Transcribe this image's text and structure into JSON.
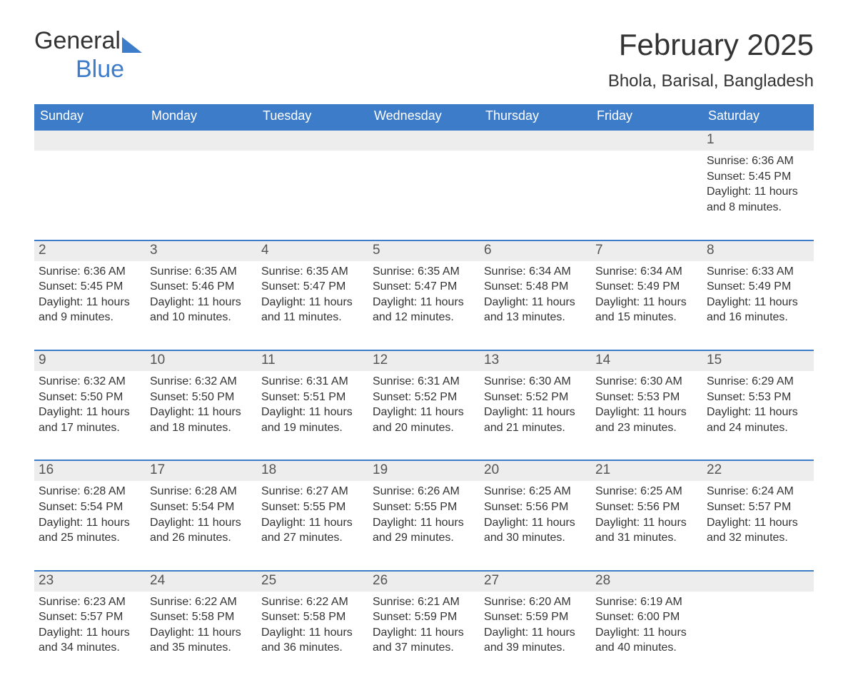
{
  "logo": {
    "word1": "General",
    "word2": "Blue",
    "tri_color": "#3d7cc9"
  },
  "title": "February 2025",
  "location": "Bhola, Barisal, Bangladesh",
  "colors": {
    "header_bg": "#3d7cc9",
    "header_text": "#ffffff",
    "daynum_bg": "#ededed",
    "week_border": "#3d7cc9",
    "body_text": "#333333",
    "background": "#ffffff"
  },
  "typography": {
    "title_fontsize": 42,
    "location_fontsize": 24,
    "weekday_fontsize": 18,
    "daynum_fontsize": 19,
    "detail_fontsize": 16
  },
  "weekdays": [
    "Sunday",
    "Monday",
    "Tuesday",
    "Wednesday",
    "Thursday",
    "Friday",
    "Saturday"
  ],
  "labels": {
    "sunrise": "Sunrise:",
    "sunset": "Sunset:",
    "daylight": "Daylight:"
  },
  "weeks": [
    [
      null,
      null,
      null,
      null,
      null,
      null,
      {
        "day": "1",
        "sunrise": "6:36 AM",
        "sunset": "5:45 PM",
        "daylight": "11 hours and 8 minutes."
      }
    ],
    [
      {
        "day": "2",
        "sunrise": "6:36 AM",
        "sunset": "5:45 PM",
        "daylight": "11 hours and 9 minutes."
      },
      {
        "day": "3",
        "sunrise": "6:35 AM",
        "sunset": "5:46 PM",
        "daylight": "11 hours and 10 minutes."
      },
      {
        "day": "4",
        "sunrise": "6:35 AM",
        "sunset": "5:47 PM",
        "daylight": "11 hours and 11 minutes."
      },
      {
        "day": "5",
        "sunrise": "6:35 AM",
        "sunset": "5:47 PM",
        "daylight": "11 hours and 12 minutes."
      },
      {
        "day": "6",
        "sunrise": "6:34 AM",
        "sunset": "5:48 PM",
        "daylight": "11 hours and 13 minutes."
      },
      {
        "day": "7",
        "sunrise": "6:34 AM",
        "sunset": "5:49 PM",
        "daylight": "11 hours and 15 minutes."
      },
      {
        "day": "8",
        "sunrise": "6:33 AM",
        "sunset": "5:49 PM",
        "daylight": "11 hours and 16 minutes."
      }
    ],
    [
      {
        "day": "9",
        "sunrise": "6:32 AM",
        "sunset": "5:50 PM",
        "daylight": "11 hours and 17 minutes."
      },
      {
        "day": "10",
        "sunrise": "6:32 AM",
        "sunset": "5:50 PM",
        "daylight": "11 hours and 18 minutes."
      },
      {
        "day": "11",
        "sunrise": "6:31 AM",
        "sunset": "5:51 PM",
        "daylight": "11 hours and 19 minutes."
      },
      {
        "day": "12",
        "sunrise": "6:31 AM",
        "sunset": "5:52 PM",
        "daylight": "11 hours and 20 minutes."
      },
      {
        "day": "13",
        "sunrise": "6:30 AM",
        "sunset": "5:52 PM",
        "daylight": "11 hours and 21 minutes."
      },
      {
        "day": "14",
        "sunrise": "6:30 AM",
        "sunset": "5:53 PM",
        "daylight": "11 hours and 23 minutes."
      },
      {
        "day": "15",
        "sunrise": "6:29 AM",
        "sunset": "5:53 PM",
        "daylight": "11 hours and 24 minutes."
      }
    ],
    [
      {
        "day": "16",
        "sunrise": "6:28 AM",
        "sunset": "5:54 PM",
        "daylight": "11 hours and 25 minutes."
      },
      {
        "day": "17",
        "sunrise": "6:28 AM",
        "sunset": "5:54 PM",
        "daylight": "11 hours and 26 minutes."
      },
      {
        "day": "18",
        "sunrise": "6:27 AM",
        "sunset": "5:55 PM",
        "daylight": "11 hours and 27 minutes."
      },
      {
        "day": "19",
        "sunrise": "6:26 AM",
        "sunset": "5:55 PM",
        "daylight": "11 hours and 29 minutes."
      },
      {
        "day": "20",
        "sunrise": "6:25 AM",
        "sunset": "5:56 PM",
        "daylight": "11 hours and 30 minutes."
      },
      {
        "day": "21",
        "sunrise": "6:25 AM",
        "sunset": "5:56 PM",
        "daylight": "11 hours and 31 minutes."
      },
      {
        "day": "22",
        "sunrise": "6:24 AM",
        "sunset": "5:57 PM",
        "daylight": "11 hours and 32 minutes."
      }
    ],
    [
      {
        "day": "23",
        "sunrise": "6:23 AM",
        "sunset": "5:57 PM",
        "daylight": "11 hours and 34 minutes."
      },
      {
        "day": "24",
        "sunrise": "6:22 AM",
        "sunset": "5:58 PM",
        "daylight": "11 hours and 35 minutes."
      },
      {
        "day": "25",
        "sunrise": "6:22 AM",
        "sunset": "5:58 PM",
        "daylight": "11 hours and 36 minutes."
      },
      {
        "day": "26",
        "sunrise": "6:21 AM",
        "sunset": "5:59 PM",
        "daylight": "11 hours and 37 minutes."
      },
      {
        "day": "27",
        "sunrise": "6:20 AM",
        "sunset": "5:59 PM",
        "daylight": "11 hours and 39 minutes."
      },
      {
        "day": "28",
        "sunrise": "6:19 AM",
        "sunset": "6:00 PM",
        "daylight": "11 hours and 40 minutes."
      },
      null
    ]
  ]
}
